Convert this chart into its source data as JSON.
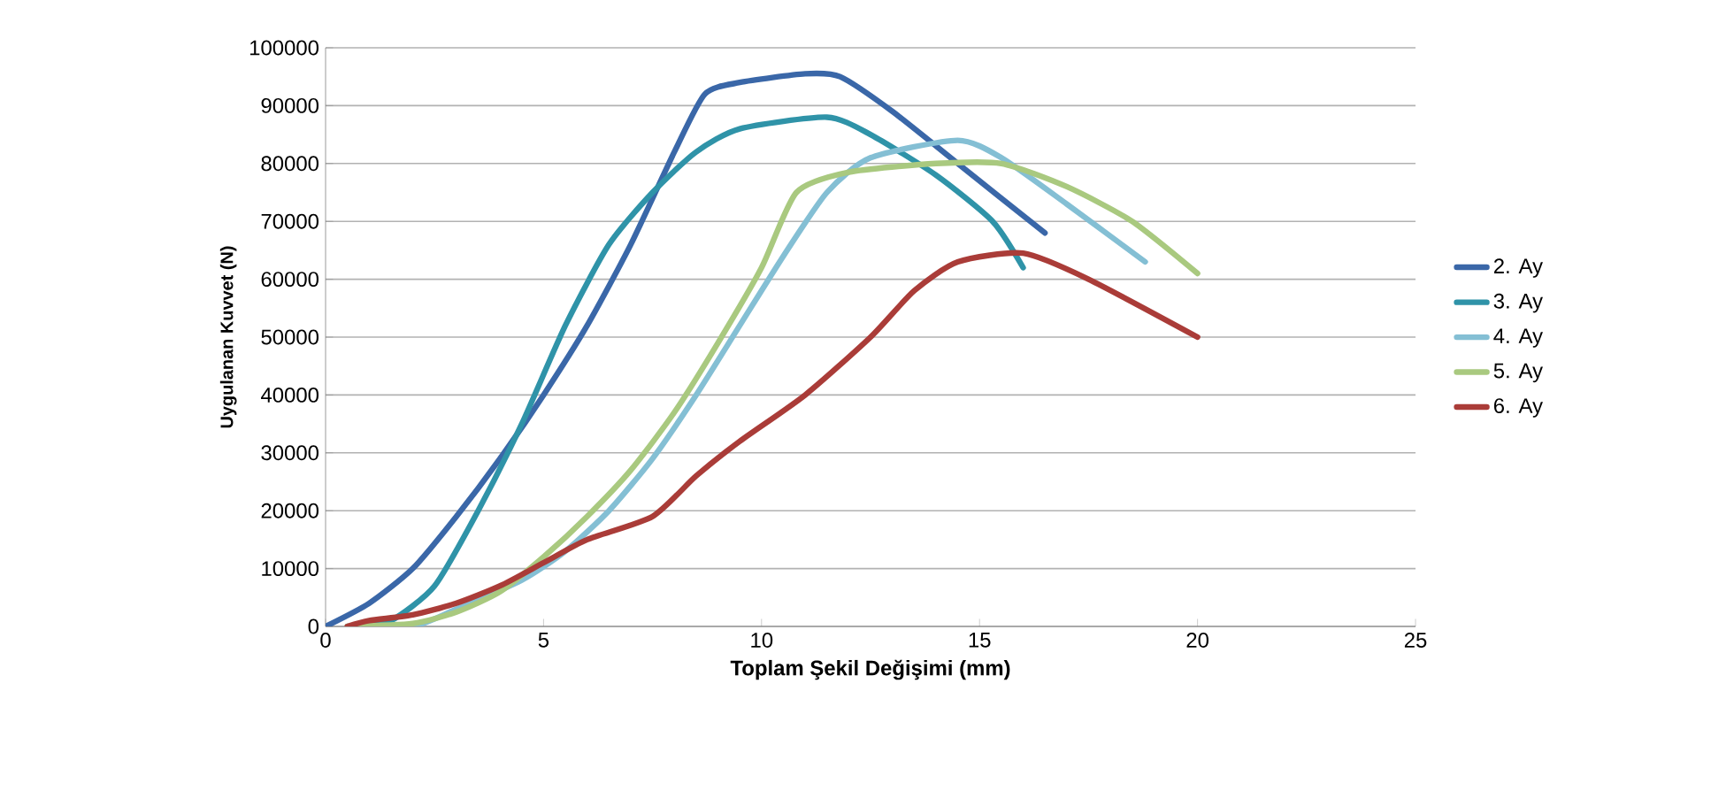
{
  "chart_data": {
    "type": "line",
    "xlabel": "Toplam Şekil Değişimi (mm)",
    "ylabel": "Uygulanan Kuvvet (N)",
    "xlim": [
      0,
      25
    ],
    "ylim": [
      0,
      100000
    ],
    "xticks": [
      0,
      5,
      10,
      15,
      20,
      25
    ],
    "yticks": [
      0,
      10000,
      20000,
      30000,
      40000,
      50000,
      60000,
      70000,
      80000,
      90000,
      100000
    ],
    "grid": "y",
    "legend": "right",
    "marker": "none",
    "line_style": "solid",
    "series": [
      {
        "name": "2. Ay",
        "color": "#3a67a8",
        "x": [
          0,
          1,
          2,
          3,
          4,
          5,
          6,
          7,
          8,
          8.7,
          9.5,
          11,
          11.8,
          13,
          14.5,
          16.5
        ],
        "values": [
          0,
          4000,
          10000,
          19000,
          29000,
          40000,
          52000,
          66000,
          82000,
          92000,
          94000,
          95500,
          95000,
          89000,
          80000,
          68000
        ]
      },
      {
        "name": "3. Ay",
        "color": "#2f93a8",
        "x": [
          0.7,
          1.5,
          2.5,
          3.5,
          4.5,
          5.5,
          6.5,
          7.5,
          8.5,
          9.5,
          11.5,
          12.5,
          14,
          15.3,
          16
        ],
        "values": [
          0,
          1000,
          7000,
          20000,
          35000,
          52000,
          66000,
          75000,
          82000,
          86000,
          88000,
          85000,
          78000,
          70000,
          62000
        ]
      },
      {
        "name": "4. Ay",
        "color": "#84bfd4",
        "x": [
          0.5,
          2,
          3,
          4.5,
          5.5,
          6.5,
          7.5,
          8.5,
          9.5,
          10.5,
          11.5,
          12.5,
          14.5,
          15.5,
          17,
          18.8
        ],
        "values": [
          0,
          0,
          3000,
          8000,
          13000,
          20000,
          29000,
          40000,
          52000,
          64000,
          75000,
          81000,
          84000,
          81000,
          73000,
          63000
        ]
      },
      {
        "name": "5. Ay",
        "color": "#a9c97f",
        "x": [
          0.5,
          2,
          3,
          4,
          5,
          6,
          7,
          8,
          9,
          10,
          10.8,
          12,
          14,
          15.5,
          17,
          18.5,
          20
        ],
        "values": [
          0,
          500,
          2500,
          6000,
          12000,
          19000,
          27000,
          37000,
          49000,
          62000,
          75000,
          78500,
          80000,
          80000,
          76000,
          70000,
          61000
        ]
      },
      {
        "name": "6. Ay",
        "color": "#aa3c38",
        "x": [
          0.5,
          1,
          2,
          3,
          4,
          5,
          6,
          7.5,
          8.5,
          9.5,
          11,
          12.5,
          13.5,
          14.5,
          16,
          17.5,
          20
        ],
        "values": [
          0,
          1000,
          2000,
          4000,
          7000,
          11000,
          15000,
          19000,
          26000,
          32000,
          40000,
          50000,
          58000,
          63000,
          64500,
          60000,
          50000
        ]
      }
    ]
  }
}
